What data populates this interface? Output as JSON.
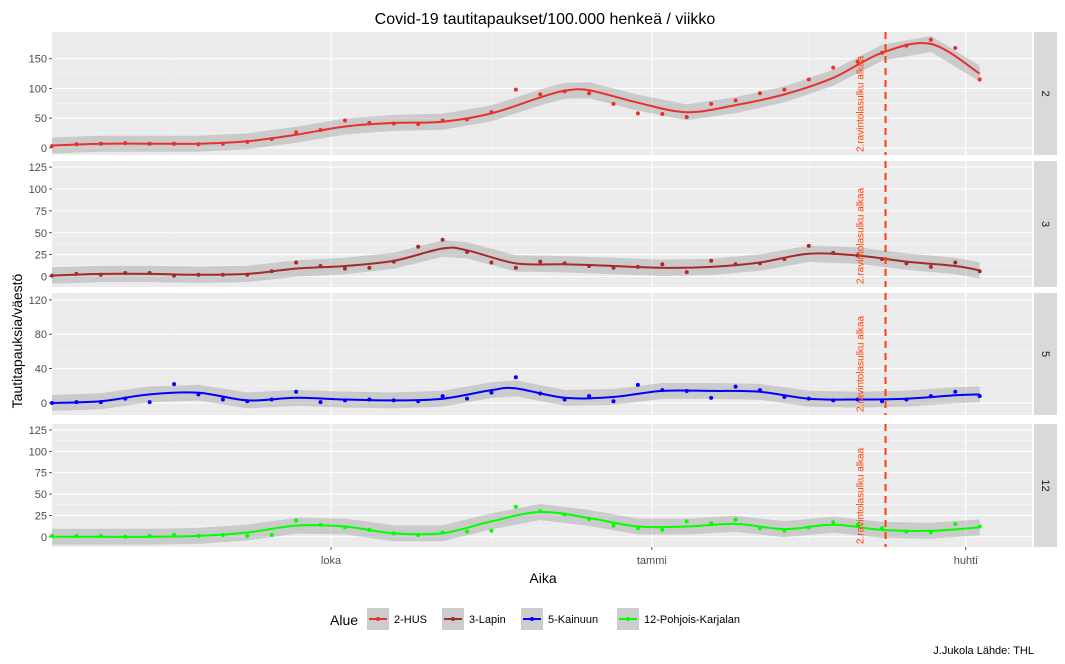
{
  "chart_data": {
    "type": "line",
    "title": "Covid-19 tautitapaukset/100.000 henkeä / viikko",
    "xlabel": "Aika",
    "ylabel": "Tautitapauksia/väestö",
    "caption": "J.Jukola  Lähde: THL",
    "x_range": [
      "2020-07-13",
      "2021-04-20"
    ],
    "x_ticks": [
      {
        "date": "2020-10-01",
        "label": "loka"
      },
      {
        "date": "2021-01-01",
        "label": "tammi"
      },
      {
        "date": "2021-04-01",
        "label": "huhti"
      }
    ],
    "grid": true,
    "vline": {
      "date": "2021-03-09",
      "label": "2.ravintolasulku alkaa",
      "color": "#ff4000"
    },
    "legend": {
      "title": "Alue",
      "position": "bottom"
    },
    "panels": [
      {
        "strip": "2",
        "series_name": "2-HUS",
        "color": "#e8312f",
        "ylim": [
          -12,
          195
        ],
        "y_ticks": [
          0,
          50,
          100,
          150
        ],
        "points": [
          [
            "2020-07-13",
            3
          ],
          [
            "2020-07-20",
            6
          ],
          [
            "2020-07-27",
            7
          ],
          [
            "2020-08-03",
            8
          ],
          [
            "2020-08-10",
            7
          ],
          [
            "2020-08-17",
            7
          ],
          [
            "2020-08-24",
            6
          ],
          [
            "2020-08-31",
            7
          ],
          [
            "2020-09-07",
            10
          ],
          [
            "2020-09-14",
            15
          ],
          [
            "2020-09-21",
            26
          ],
          [
            "2020-09-28",
            30
          ],
          [
            "2020-10-05",
            46
          ],
          [
            "2020-10-12",
            42
          ],
          [
            "2020-10-19",
            41
          ],
          [
            "2020-10-26",
            40
          ],
          [
            "2020-11-02",
            46
          ],
          [
            "2020-11-09",
            48
          ],
          [
            "2020-11-16",
            60
          ],
          [
            "2020-11-23",
            98
          ],
          [
            "2020-11-30",
            90
          ],
          [
            "2020-12-07",
            95
          ],
          [
            "2020-12-14",
            92
          ],
          [
            "2020-12-21",
            74
          ],
          [
            "2020-12-28",
            58
          ],
          [
            "2021-01-04",
            57
          ],
          [
            "2021-01-11",
            52
          ],
          [
            "2021-01-18",
            74
          ],
          [
            "2021-01-25",
            80
          ],
          [
            "2021-02-01",
            92
          ],
          [
            "2021-02-08",
            98
          ],
          [
            "2021-02-15",
            115
          ],
          [
            "2021-02-22",
            135
          ],
          [
            "2021-03-01",
            145
          ],
          [
            "2021-03-08",
            160
          ],
          [
            "2021-03-15",
            172
          ],
          [
            "2021-03-22",
            182
          ],
          [
            "2021-03-29",
            168
          ],
          [
            "2021-04-05",
            115
          ]
        ],
        "smooth": [
          [
            "2020-07-13",
            4
          ],
          [
            "2020-07-27",
            7
          ],
          [
            "2020-08-10",
            7
          ],
          [
            "2020-08-24",
            7
          ],
          [
            "2020-09-07",
            11
          ],
          [
            "2020-09-21",
            22
          ],
          [
            "2020-10-05",
            36
          ],
          [
            "2020-10-19",
            42
          ],
          [
            "2020-11-02",
            44
          ],
          [
            "2020-11-16",
            58
          ],
          [
            "2020-11-30",
            85
          ],
          [
            "2020-12-07",
            96
          ],
          [
            "2020-12-14",
            97
          ],
          [
            "2020-12-28",
            76
          ],
          [
            "2021-01-11",
            60
          ],
          [
            "2021-01-25",
            72
          ],
          [
            "2021-02-08",
            90
          ],
          [
            "2021-02-22",
            118
          ],
          [
            "2021-03-08",
            160
          ],
          [
            "2021-03-22",
            175
          ],
          [
            "2021-04-05",
            125
          ]
        ]
      },
      {
        "strip": "3",
        "series_name": "3-Lapin",
        "color": "#a52a2a",
        "ylim": [
          -12,
          132
        ],
        "y_ticks": [
          0,
          25,
          50,
          75,
          100,
          125
        ],
        "points": [
          [
            "2020-07-13",
            1
          ],
          [
            "2020-07-20",
            3
          ],
          [
            "2020-07-27",
            2
          ],
          [
            "2020-08-03",
            4
          ],
          [
            "2020-08-10",
            4
          ],
          [
            "2020-08-17",
            1
          ],
          [
            "2020-08-24",
            2
          ],
          [
            "2020-08-31",
            2
          ],
          [
            "2020-09-07",
            2
          ],
          [
            "2020-09-14",
            6
          ],
          [
            "2020-09-21",
            16
          ],
          [
            "2020-09-28",
            12
          ],
          [
            "2020-10-05",
            9
          ],
          [
            "2020-10-12",
            10
          ],
          [
            "2020-10-19",
            17
          ],
          [
            "2020-10-26",
            34
          ],
          [
            "2020-11-02",
            42
          ],
          [
            "2020-11-09",
            28
          ],
          [
            "2020-11-16",
            16
          ],
          [
            "2020-11-23",
            10
          ],
          [
            "2020-11-30",
            17
          ],
          [
            "2020-12-07",
            15
          ],
          [
            "2020-12-14",
            12
          ],
          [
            "2020-12-21",
            10
          ],
          [
            "2020-12-28",
            11
          ],
          [
            "2021-01-04",
            14
          ],
          [
            "2021-01-11",
            5
          ],
          [
            "2021-01-18",
            18
          ],
          [
            "2021-01-25",
            14
          ],
          [
            "2021-02-01",
            15
          ],
          [
            "2021-02-08",
            20
          ],
          [
            "2021-02-15",
            35
          ],
          [
            "2021-02-22",
            27
          ],
          [
            "2021-03-01",
            24
          ],
          [
            "2021-03-08",
            20
          ],
          [
            "2021-03-15",
            15
          ],
          [
            "2021-03-22",
            11
          ],
          [
            "2021-03-29",
            16
          ],
          [
            "2021-04-05",
            6
          ]
        ],
        "smooth": [
          [
            "2020-07-13",
            1
          ],
          [
            "2020-07-27",
            3
          ],
          [
            "2020-08-10",
            3
          ],
          [
            "2020-08-24",
            2
          ],
          [
            "2020-09-07",
            3
          ],
          [
            "2020-09-21",
            9
          ],
          [
            "2020-10-05",
            12
          ],
          [
            "2020-10-19",
            18
          ],
          [
            "2020-11-02",
            32
          ],
          [
            "2020-11-09",
            30
          ],
          [
            "2020-11-23",
            15
          ],
          [
            "2020-12-07",
            14
          ],
          [
            "2020-12-21",
            12
          ],
          [
            "2021-01-04",
            10
          ],
          [
            "2021-01-18",
            11
          ],
          [
            "2021-02-01",
            16
          ],
          [
            "2021-02-15",
            26
          ],
          [
            "2021-03-01",
            24
          ],
          [
            "2021-03-15",
            17
          ],
          [
            "2021-03-29",
            12
          ],
          [
            "2021-04-05",
            7
          ]
        ]
      },
      {
        "strip": "5",
        "series_name": "5-Kainuun",
        "color": "#0000ff",
        "ylim": [
          -14,
          128
        ],
        "y_ticks": [
          0,
          40,
          80,
          120
        ],
        "points": [
          [
            "2020-07-13",
            0
          ],
          [
            "2020-07-20",
            1
          ],
          [
            "2020-07-27",
            1
          ],
          [
            "2020-08-03",
            5
          ],
          [
            "2020-08-10",
            1
          ],
          [
            "2020-08-17",
            22
          ],
          [
            "2020-08-24",
            10
          ],
          [
            "2020-08-31",
            4
          ],
          [
            "2020-09-07",
            2
          ],
          [
            "2020-09-14",
            4
          ],
          [
            "2020-09-21",
            13
          ],
          [
            "2020-09-28",
            1
          ],
          [
            "2020-10-05",
            3
          ],
          [
            "2020-10-12",
            4
          ],
          [
            "2020-10-19",
            3
          ],
          [
            "2020-10-26",
            2
          ],
          [
            "2020-11-02",
            8
          ],
          [
            "2020-11-09",
            5
          ],
          [
            "2020-11-16",
            12
          ],
          [
            "2020-11-23",
            30
          ],
          [
            "2020-11-30",
            11
          ],
          [
            "2020-12-07",
            4
          ],
          [
            "2020-12-14",
            8
          ],
          [
            "2020-12-21",
            2
          ],
          [
            "2020-12-28",
            21
          ],
          [
            "2021-01-04",
            15
          ],
          [
            "2021-01-11",
            14
          ],
          [
            "2021-01-18",
            6
          ],
          [
            "2021-01-25",
            19
          ],
          [
            "2021-02-01",
            15
          ],
          [
            "2021-02-08",
            7
          ],
          [
            "2021-02-15",
            5
          ],
          [
            "2021-02-22",
            3
          ],
          [
            "2021-03-01",
            4
          ],
          [
            "2021-03-08",
            2
          ],
          [
            "2021-03-15",
            4
          ],
          [
            "2021-03-22",
            8
          ],
          [
            "2021-03-29",
            13
          ],
          [
            "2021-04-05",
            8
          ]
        ],
        "smooth": [
          [
            "2020-07-13",
            0
          ],
          [
            "2020-07-27",
            2
          ],
          [
            "2020-08-10",
            10
          ],
          [
            "2020-08-24",
            12
          ],
          [
            "2020-09-07",
            3
          ],
          [
            "2020-09-21",
            6
          ],
          [
            "2020-10-05",
            4
          ],
          [
            "2020-10-19",
            3
          ],
          [
            "2020-11-02",
            5
          ],
          [
            "2020-11-16",
            15
          ],
          [
            "2020-11-23",
            17
          ],
          [
            "2020-12-07",
            6
          ],
          [
            "2020-12-21",
            7
          ],
          [
            "2021-01-04",
            14
          ],
          [
            "2021-01-18",
            14
          ],
          [
            "2021-02-01",
            13
          ],
          [
            "2021-02-15",
            5
          ],
          [
            "2021-03-01",
            4
          ],
          [
            "2021-03-15",
            5
          ],
          [
            "2021-03-29",
            9
          ],
          [
            "2021-04-05",
            10
          ]
        ]
      },
      {
        "strip": "12",
        "series_name": "12-Pohjois-Karjalan",
        "color": "#00ff00",
        "ylim": [
          -12,
          132
        ],
        "y_ticks": [
          0,
          25,
          50,
          75,
          100,
          125
        ],
        "points": [
          [
            "2020-07-13",
            1
          ],
          [
            "2020-07-20",
            1
          ],
          [
            "2020-07-27",
            1
          ],
          [
            "2020-08-03",
            0
          ],
          [
            "2020-08-10",
            1
          ],
          [
            "2020-08-17",
            2
          ],
          [
            "2020-08-24",
            1
          ],
          [
            "2020-08-31",
            2
          ],
          [
            "2020-09-07",
            1
          ],
          [
            "2020-09-14",
            2
          ],
          [
            "2020-09-21",
            19
          ],
          [
            "2020-09-28",
            14
          ],
          [
            "2020-10-05",
            11
          ],
          [
            "2020-10-12",
            8
          ],
          [
            "2020-10-19",
            4
          ],
          [
            "2020-10-26",
            2
          ],
          [
            "2020-11-02",
            5
          ],
          [
            "2020-11-09",
            6
          ],
          [
            "2020-11-16",
            7
          ],
          [
            "2020-11-23",
            35
          ],
          [
            "2020-11-30",
            30
          ],
          [
            "2020-12-07",
            26
          ],
          [
            "2020-12-14",
            21
          ],
          [
            "2020-12-21",
            13
          ],
          [
            "2020-12-28",
            10
          ],
          [
            "2021-01-04",
            8
          ],
          [
            "2021-01-11",
            18
          ],
          [
            "2021-01-18",
            16
          ],
          [
            "2021-01-25",
            20
          ],
          [
            "2021-02-01",
            10
          ],
          [
            "2021-02-08",
            7
          ],
          [
            "2021-02-15",
            11
          ],
          [
            "2021-02-22",
            17
          ],
          [
            "2021-03-01",
            14
          ],
          [
            "2021-03-08",
            10
          ],
          [
            "2021-03-15",
            6
          ],
          [
            "2021-03-22",
            5
          ],
          [
            "2021-03-29",
            15
          ],
          [
            "2021-04-05",
            12
          ]
        ],
        "smooth": [
          [
            "2020-07-13",
            0
          ],
          [
            "2020-07-27",
            0
          ],
          [
            "2020-08-10",
            0
          ],
          [
            "2020-08-24",
            1
          ],
          [
            "2020-09-07",
            5
          ],
          [
            "2020-09-21",
            13
          ],
          [
            "2020-10-05",
            12
          ],
          [
            "2020-10-19",
            4
          ],
          [
            "2020-11-02",
            4
          ],
          [
            "2020-11-16",
            18
          ],
          [
            "2020-11-30",
            29
          ],
          [
            "2020-12-14",
            22
          ],
          [
            "2020-12-28",
            12
          ],
          [
            "2021-01-11",
            12
          ],
          [
            "2021-01-25",
            15
          ],
          [
            "2021-02-08",
            9
          ],
          [
            "2021-02-22",
            14
          ],
          [
            "2021-03-08",
            8
          ],
          [
            "2021-03-22",
            7
          ],
          [
            "2021-04-05",
            11
          ]
        ]
      }
    ]
  }
}
